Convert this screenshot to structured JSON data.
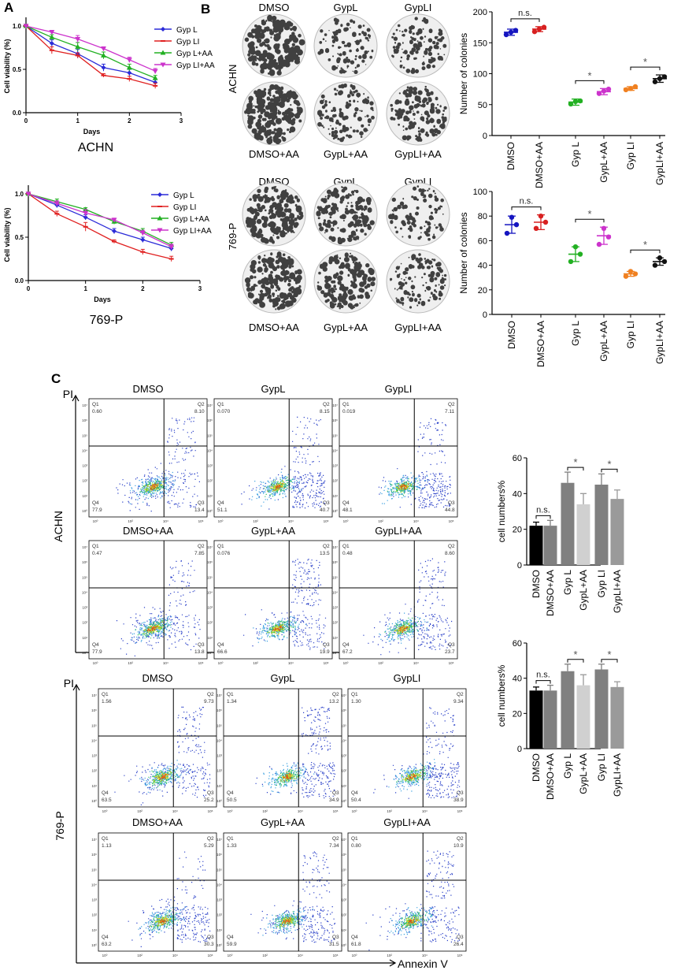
{
  "panel_labels": {
    "a": "A",
    "b": "B",
    "c": "C"
  },
  "colors": {
    "gyp_l": "#2B2BD8",
    "gyp_li": "#E02020",
    "gyp_l_aa": "#22B022",
    "gyp_li_aa": "#CC33CC",
    "dmso": "#1515C0",
    "dmso_aa": "#D82020",
    "gyp_l_dot": "#22B022",
    "gypl_aa_dot": "#CC33CC",
    "gyp_li_dot": "#F08020",
    "gypli_aa_dot": "#111111",
    "bar_dmso": "#000000",
    "bar_dmso_aa": "#808080",
    "bar_gyp_l": "#808080",
    "bar_gypl_aa": "#D0D0D0",
    "bar_gyp_li": "#808080",
    "bar_gypli_aa": "#9A9A9A"
  },
  "colony_grid": {
    "achn": {
      "cell_line": "ACHN",
      "top_labels": [
        "DMSO",
        "GypL",
        "GypLI"
      ],
      "bottom_labels": [
        "DMSO+AA",
        "GypL+AA",
        "GypLI+AA"
      ],
      "density": [
        0.85,
        0.35,
        0.45,
        0.85,
        0.45,
        0.55
      ]
    },
    "p769": {
      "cell_line": "769-P",
      "top_labels": [
        "DMSO",
        "GypL",
        "GypLI"
      ],
      "bottom_labels": [
        "DMSO+AA",
        "GypL+AA",
        "GypLI+AA"
      ],
      "density": [
        0.8,
        0.65,
        0.35,
        0.8,
        0.7,
        0.45
      ]
    }
  },
  "flow": {
    "x_axis_label": "Annexin V",
    "y_axis_label": "PI",
    "ticks": [
      "10⁰",
      "10²",
      "10⁴",
      "10⁶"
    ],
    "ytick": [
      "10⁰",
      "10¹",
      "10²",
      "10³",
      "10⁴",
      "10⁵",
      "10⁶",
      "10⁷"
    ],
    "quadrant_names": [
      "Q1",
      "Q2",
      "Q3",
      "Q4"
    ],
    "achn": {
      "cell_line": "ACHN",
      "plots": [
        {
          "title": "DMSO",
          "q1": "0.60",
          "q2": "8.10",
          "q3": "13.4",
          "q4": "77.9"
        },
        {
          "title": "GypL",
          "q1": "0.070",
          "q2": "8.15",
          "q3": "40.7",
          "q4": "51.1"
        },
        {
          "title": "GypLI",
          "q1": "0.019",
          "q2": "7.11",
          "q3": "44.8",
          "q4": "48.1"
        },
        {
          "title": "DMSO+AA",
          "q1": "0.47",
          "q2": "7.85",
          "q3": "13.8",
          "q4": "77.9"
        },
        {
          "title": "GypL+AA",
          "q1": "0.076",
          "q2": "13.5",
          "q3": "19.9",
          "q4": "66.6"
        },
        {
          "title": "GypLI+AA",
          "q1": "0.48",
          "q2": "8.60",
          "q3": "23.7",
          "q4": "67.2"
        }
      ]
    },
    "p769": {
      "cell_line": "769-P",
      "plots": [
        {
          "title": "DMSO",
          "q1": "1.56",
          "q2": "9.73",
          "q3": "25.2",
          "q4": "63.5"
        },
        {
          "title": "GypL",
          "q1": "1.34",
          "q2": "13.2",
          "q3": "34.9",
          "q4": "50.5"
        },
        {
          "title": "GypLI",
          "q1": "1.30",
          "q2": "9.34",
          "q3": "38.9",
          "q4": "50.4"
        },
        {
          "title": "DMSO+AA",
          "q1": "1.13",
          "q2": "5.29",
          "q3": "30.3",
          "q4": "63.2"
        },
        {
          "title": "GypL+AA",
          "q1": "1.33",
          "q2": "7.34",
          "q3": "31.5",
          "q4": "59.9"
        },
        {
          "title": "GypLI+AA",
          "q1": "0.80",
          "q2": "10.9",
          "q3": "26.4",
          "q4": "61.8"
        }
      ]
    }
  },
  "chart_data": [
    {
      "id": "viability_achn",
      "type": "line",
      "title": "ACHN",
      "xlabel": "Days",
      "ylabel": "Cell viability (%)",
      "xlim": [
        0,
        3
      ],
      "ylim": [
        0,
        1.1
      ],
      "xticks": [
        0,
        1,
        2,
        3
      ],
      "yticks": [
        0.0,
        0.5,
        1.0
      ],
      "x": [
        0,
        0.5,
        1,
        1.5,
        2,
        2.5
      ],
      "series": [
        {
          "name": "Gyp L",
          "marker": "diamond",
          "values": [
            1.0,
            0.8,
            0.68,
            0.52,
            0.46,
            0.35
          ],
          "err": [
            0.02,
            0.04,
            0.05,
            0.04,
            0.04,
            0.03
          ]
        },
        {
          "name": "Gyp LI",
          "marker": "dash",
          "values": [
            1.0,
            0.72,
            0.66,
            0.43,
            0.39,
            0.31
          ],
          "err": [
            0.02,
            0.04,
            0.03,
            0.02,
            0.03,
            0.03
          ]
        },
        {
          "name": "Gyp L+AA",
          "marker": "triangle",
          "values": [
            1.0,
            0.87,
            0.76,
            0.66,
            0.52,
            0.4
          ],
          "err": [
            0.02,
            0.03,
            0.05,
            0.04,
            0.04,
            0.03
          ]
        },
        {
          "name": "Gyp LI+AA",
          "marker": "tri-down",
          "values": [
            1.0,
            0.93,
            0.85,
            0.74,
            0.61,
            0.48
          ],
          "err": [
            0.02,
            0.02,
            0.04,
            0.02,
            0.03,
            0.03
          ]
        }
      ]
    },
    {
      "id": "viability_769p",
      "type": "line",
      "title": "769-P",
      "xlabel": "Days",
      "ylabel": "Cell viability (%)",
      "xlim": [
        0,
        3
      ],
      "ylim": [
        0,
        1.1
      ],
      "xticks": [
        0,
        1,
        2,
        3
      ],
      "yticks": [
        0.0,
        0.5,
        1.0
      ],
      "x": [
        0,
        0.5,
        1,
        1.5,
        2,
        2.5
      ],
      "series": [
        {
          "name": "Gyp L",
          "marker": "diamond",
          "values": [
            1.0,
            0.87,
            0.73,
            0.57,
            0.47,
            0.37
          ],
          "err": [
            0.02,
            0.03,
            0.03,
            0.03,
            0.03,
            0.03
          ]
        },
        {
          "name": "Gyp LI",
          "marker": "dash",
          "values": [
            1.0,
            0.77,
            0.62,
            0.45,
            0.33,
            0.25
          ],
          "err": [
            0.02,
            0.03,
            0.05,
            0.02,
            0.03,
            0.03
          ]
        },
        {
          "name": "Gyp L+AA",
          "marker": "triangle",
          "values": [
            1.0,
            0.91,
            0.82,
            0.68,
            0.57,
            0.41
          ],
          "err": [
            0.02,
            0.03,
            0.02,
            0.03,
            0.03,
            0.03
          ]
        },
        {
          "name": "Gyp LI+AA",
          "marker": "tri-down",
          "values": [
            1.0,
            0.89,
            0.78,
            0.7,
            0.55,
            0.39
          ],
          "err": [
            0.02,
            0.03,
            0.04,
            0.02,
            0.03,
            0.03
          ]
        }
      ]
    },
    {
      "id": "colonies_achn",
      "type": "scatter",
      "ylabel": "Number of colonies",
      "ylim": [
        0,
        200
      ],
      "yticks": [
        0,
        50,
        100,
        150,
        200
      ],
      "categories": [
        "DMSO",
        "DMSO+AA",
        "Gyp L",
        "GypL+AA",
        "Gyp LI",
        "GypLI+AA"
      ],
      "points": [
        [
          163,
          170,
          167
        ],
        [
          168,
          175,
          172
        ],
        [
          51,
          56,
          55
        ],
        [
          68,
          75,
          72
        ],
        [
          74,
          79,
          76
        ],
        [
          87,
          95,
          92
        ]
      ],
      "means": [
        167,
        172,
        54,
        71,
        76,
        92
      ],
      "sd": [
        5,
        4,
        5,
        5,
        3,
        6
      ],
      "brackets": [
        {
          "from": 0,
          "to": 1,
          "label": "n.s."
        },
        {
          "from": 2,
          "to": 3,
          "label": "*"
        },
        {
          "from": 4,
          "to": 5,
          "label": "*"
        }
      ]
    },
    {
      "id": "colonies_769p",
      "type": "scatter",
      "ylabel": "Number of colonies",
      "ylim": [
        0,
        100
      ],
      "yticks": [
        0,
        20,
        40,
        60,
        80,
        100
      ],
      "categories": [
        "DMSO",
        "DMSO+AA",
        "Gyp L",
        "GypL+AA",
        "Gyp LI",
        "GypLI+AA"
      ],
      "points": [
        [
          66,
          73,
          79
        ],
        [
          70,
          75,
          80
        ],
        [
          43,
          49,
          55
        ],
        [
          57,
          63,
          70
        ],
        [
          31,
          33,
          35
        ],
        [
          40,
          43,
          46
        ]
      ],
      "means": [
        73,
        75,
        49,
        64,
        33,
        43
      ],
      "sd": [
        7,
        6,
        6,
        7,
        2,
        3
      ],
      "brackets": [
        {
          "from": 0,
          "to": 1,
          "label": "n.s."
        },
        {
          "from": 2,
          "to": 3,
          "label": "*"
        },
        {
          "from": 4,
          "to": 5,
          "label": "*"
        }
      ]
    },
    {
      "id": "apoptosis_achn",
      "type": "bar",
      "ylabel": "cell numbers%",
      "ylim": [
        0,
        60
      ],
      "yticks": [
        0,
        20,
        40,
        60
      ],
      "categories": [
        "DMSO",
        "DMSO+AA",
        "Gyp L",
        "GypL+AA",
        "Gyp LI",
        "GypLI+AA"
      ],
      "values": [
        22,
        22,
        46,
        34,
        45,
        37
      ],
      "err": [
        2,
        3,
        6,
        6,
        6,
        5
      ],
      "brackets": [
        {
          "from": 0,
          "to": 1,
          "label": "n.s."
        },
        {
          "from": 2,
          "to": 3,
          "label": "*"
        },
        {
          "from": 4,
          "to": 5,
          "label": "*"
        }
      ]
    },
    {
      "id": "apoptosis_769p",
      "type": "bar",
      "ylabel": "cell numbers%",
      "ylim": [
        0,
        60
      ],
      "yticks": [
        0,
        20,
        40,
        60
      ],
      "categories": [
        "DMSO",
        "DMSO+AA",
        "Gyp L",
        "GypL+AA",
        "Gyp LI",
        "GypLI+AA"
      ],
      "values": [
        33,
        33,
        44,
        36,
        45,
        35
      ],
      "err": [
        2,
        3,
        4,
        6,
        3,
        3
      ],
      "brackets": [
        {
          "from": 0,
          "to": 1,
          "label": "n.s."
        },
        {
          "from": 2,
          "to": 3,
          "label": "*"
        },
        {
          "from": 4,
          "to": 5,
          "label": "*"
        }
      ]
    }
  ]
}
